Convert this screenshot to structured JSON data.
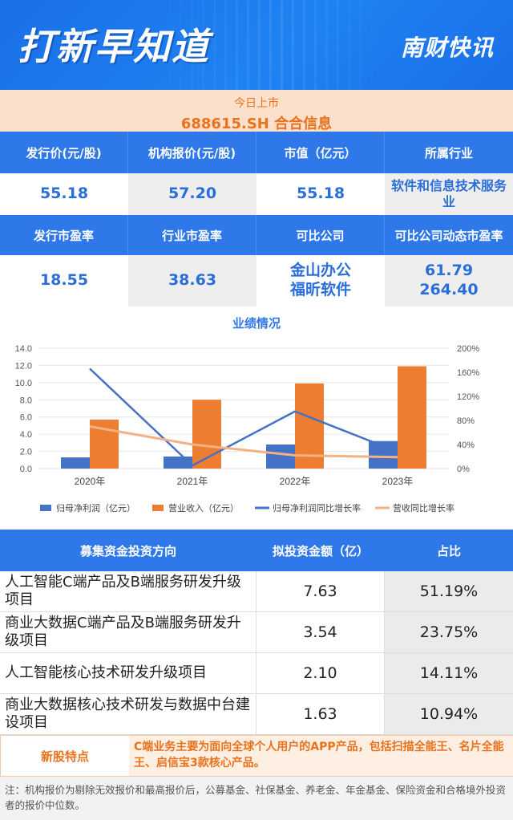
{
  "header": {
    "title": "打新早知道",
    "brand": "南财快讯"
  },
  "ipo": {
    "subtitle": "今日上市",
    "name": "688615.SH 合合信息"
  },
  "info_headers_1": [
    "发行价(元/股)",
    "机构报价(元/股)",
    "市值（亿元）",
    "所属行业"
  ],
  "info_values_1": [
    "55.18",
    "57.20",
    "55.18",
    "软件和信息技术服务业"
  ],
  "info_headers_2": [
    "发行市盈率",
    "行业市盈率",
    "可比公司",
    "可比公司动态市盈率"
  ],
  "info_values_2": {
    "issue_pe": "18.55",
    "industry_pe": "38.63",
    "comparables": [
      "金山办公",
      "福昕软件"
    ],
    "comparable_pe": [
      "61.79",
      "264.40"
    ]
  },
  "chart_data": {
    "type": "bar",
    "title": "业绩情况",
    "categories": [
      "2020年",
      "2021年",
      "2022年",
      "2023年"
    ],
    "ylim": [
      0,
      14
    ],
    "y_ticks": [
      "0.0",
      "2.0",
      "4.0",
      "6.0",
      "8.0",
      "10.0",
      "12.0",
      "14.0"
    ],
    "y2lim": [
      0,
      200
    ],
    "y2_ticks": [
      "0%",
      "40%",
      "80%",
      "120%",
      "160%",
      "200%"
    ],
    "series": [
      {
        "name": "归母净利润（亿元）",
        "type": "bar",
        "axis": "left",
        "color": "#4472c4",
        "values": [
          1.3,
          1.4,
          2.8,
          3.2
        ]
      },
      {
        "name": "营业收入（亿元）",
        "type": "bar",
        "axis": "left",
        "color": "#ed7d31",
        "values": [
          5.7,
          8.0,
          9.9,
          11.9
        ]
      },
      {
        "name": "归母净利润同比增长率",
        "type": "line",
        "axis": "right",
        "color": "#4472c4",
        "values": [
          166,
          5,
          95,
          28
        ]
      },
      {
        "name": "营收同比增长率",
        "type": "line",
        "axis": "right",
        "color": "#f4b183",
        "values": [
          70,
          40,
          22,
          19
        ]
      }
    ],
    "legend_position": "bottom",
    "grid": true
  },
  "fund_table": {
    "headers": [
      "募集资金投资方向",
      "拟投资金额（亿）",
      "占比"
    ],
    "rows": [
      [
        "人工智能C端产品及B端服务研发升级项目",
        "7.63",
        "51.19%"
      ],
      [
        "商业大数据C端产品及B端服务研发升级项目",
        "3.54",
        "23.75%"
      ],
      [
        "人工智能核心技术研发升级项目",
        "2.10",
        "14.11%"
      ],
      [
        "商业大数据核心技术研发与数据中台建设项目",
        "1.63",
        "10.94%"
      ]
    ]
  },
  "features": {
    "label": "新股特点",
    "text": "C端业务主要为面向全球个人用户的APP产品，包括扫描全能王、名片全能王、启信宝3款核心产品。"
  },
  "note": "注：机构报价为剔除无效报价和最高报价后，公募基金、社保基金、养老金、年金基金、保险资金和合格境外投资者的报价中位数。",
  "colors": {
    "blue": "#2f78ea",
    "orange": "#e9721f",
    "peach": "#fbe1cc"
  }
}
